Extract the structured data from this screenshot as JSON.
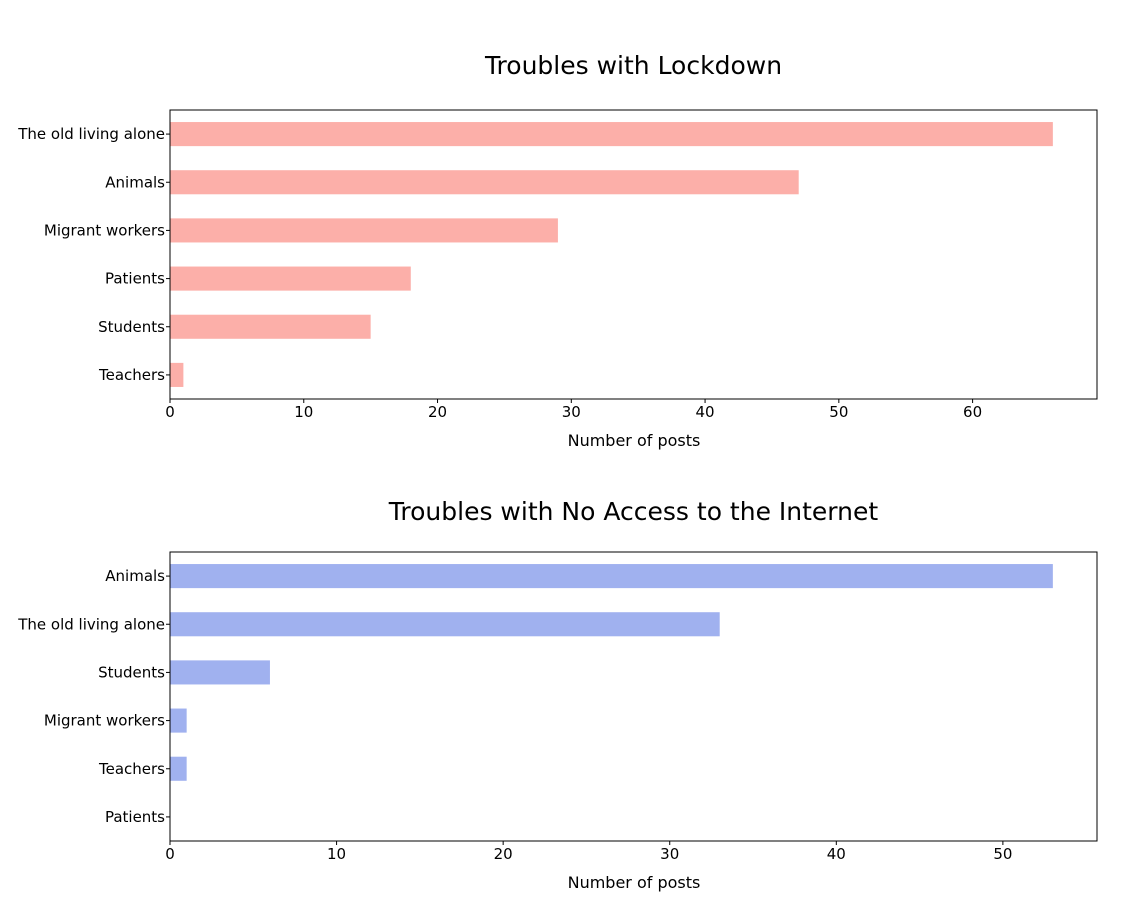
{
  "chart_data": [
    {
      "type": "bar",
      "orientation": "horizontal",
      "title": "Troubles with Lockdown",
      "xlabel": "Number of posts",
      "ylabel": "",
      "categories": [
        "The old living alone",
        "Animals",
        "Migrant workers",
        "Patients",
        "Students",
        "Teachers"
      ],
      "values": [
        66,
        47,
        29,
        18,
        15,
        1
      ],
      "xlim": [
        0,
        69.3
      ],
      "xticks": [
        "0",
        "10",
        "20",
        "30",
        "40",
        "50",
        "60"
      ],
      "color": "#fcafa9",
      "grid": false
    },
    {
      "type": "bar",
      "orientation": "horizontal",
      "title": "Troubles with No Access to the Internet",
      "xlabel": "Number of posts",
      "ylabel": "",
      "categories": [
        "Animals",
        "The old living alone",
        "Students",
        "Migrant workers",
        "Teachers",
        "Patients"
      ],
      "values": [
        53,
        33,
        6,
        1,
        1,
        0
      ],
      "xlim": [
        0,
        55.65
      ],
      "xticks": [
        "0",
        "10",
        "20",
        "30",
        "40",
        "50"
      ],
      "color": "#a0b1ef",
      "grid": false
    }
  ]
}
